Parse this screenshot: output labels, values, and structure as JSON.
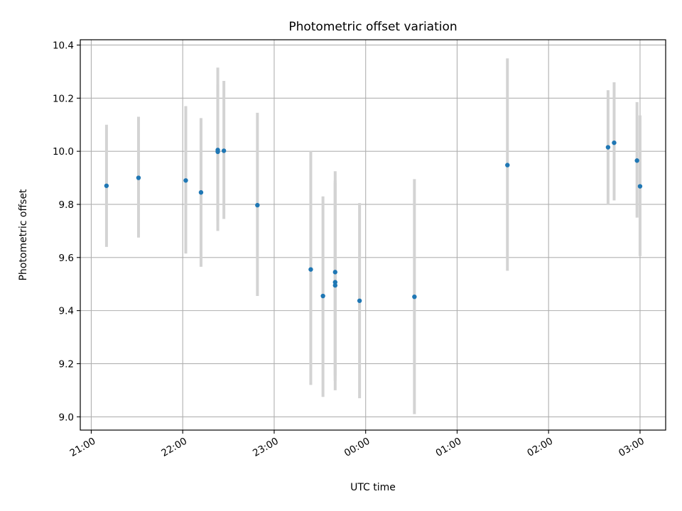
{
  "chart_data": {
    "type": "scatter",
    "title": "Photometric offset variation",
    "xlabel": "UTC time",
    "ylabel": "Photometric offset",
    "x_tick_labels": [
      "21:00",
      "22:00",
      "23:00",
      "00:00",
      "01:00",
      "02:00",
      "03:00"
    ],
    "y_tick_labels": [
      "9.0",
      "9.2",
      "9.4",
      "9.6",
      "9.8",
      "10.0",
      "10.2",
      "10.4"
    ],
    "x_ticks_hours": [
      0,
      1,
      2,
      3,
      4,
      5,
      6
    ],
    "y_ticks": [
      9.0,
      9.2,
      9.4,
      9.6,
      9.8,
      10.0,
      10.2,
      10.4
    ],
    "xlim_hours_after_2100": [
      -0.12,
      6.28
    ],
    "ylim": [
      8.95,
      10.42
    ],
    "grid": true,
    "colors": {
      "points": "#1f77b4",
      "error_bars": "#d3d3d3",
      "grid": "#b0b0b0"
    },
    "points": [
      {
        "t": "21:10",
        "y": 9.87,
        "lo": 9.64,
        "hi": 10.1
      },
      {
        "t": "21:31",
        "y": 9.9,
        "lo": 9.675,
        "hi": 10.13
      },
      {
        "t": "22:02",
        "y": 9.89,
        "lo": 9.615,
        "hi": 10.17
      },
      {
        "t": "22:12",
        "y": 9.845,
        "lo": 9.565,
        "hi": 10.125
      },
      {
        "t": "22:23",
        "y": 10.005,
        "lo": 9.7,
        "hi": 10.315
      },
      {
        "t": "22:23",
        "y": 9.998,
        "lo": 9.74,
        "hi": 10.25
      },
      {
        "t": "22:27",
        "y": 10.002,
        "lo": 9.745,
        "hi": 10.265
      },
      {
        "t": "22:49",
        "y": 9.797,
        "lo": 9.455,
        "hi": 10.145
      },
      {
        "t": "23:24",
        "y": 9.555,
        "lo": 9.12,
        "hi": 10.0
      },
      {
        "t": "23:32",
        "y": 9.455,
        "lo": 9.075,
        "hi": 9.83
      },
      {
        "t": "23:40",
        "y": 9.545,
        "lo": 9.155,
        "hi": 9.925
      },
      {
        "t": "23:40",
        "y": 9.507,
        "lo": 9.135,
        "hi": 9.88
      },
      {
        "t": "23:40",
        "y": 9.495,
        "lo": 9.1,
        "hi": 9.89
      },
      {
        "t": "23:56",
        "y": 9.437,
        "lo": 9.07,
        "hi": 9.805
      },
      {
        "t": "00:32",
        "y": 9.452,
        "lo": 9.01,
        "hi": 9.895
      },
      {
        "t": "01:33",
        "y": 9.948,
        "lo": 9.55,
        "hi": 10.35
      },
      {
        "t": "02:39",
        "y": 10.015,
        "lo": 9.8,
        "hi": 10.23
      },
      {
        "t": "02:43",
        "y": 10.032,
        "lo": 9.815,
        "hi": 10.26
      },
      {
        "t": "02:58",
        "y": 9.965,
        "lo": 9.75,
        "hi": 10.185
      },
      {
        "t": "03:00",
        "y": 9.868,
        "lo": 9.605,
        "hi": 10.135
      }
    ]
  }
}
